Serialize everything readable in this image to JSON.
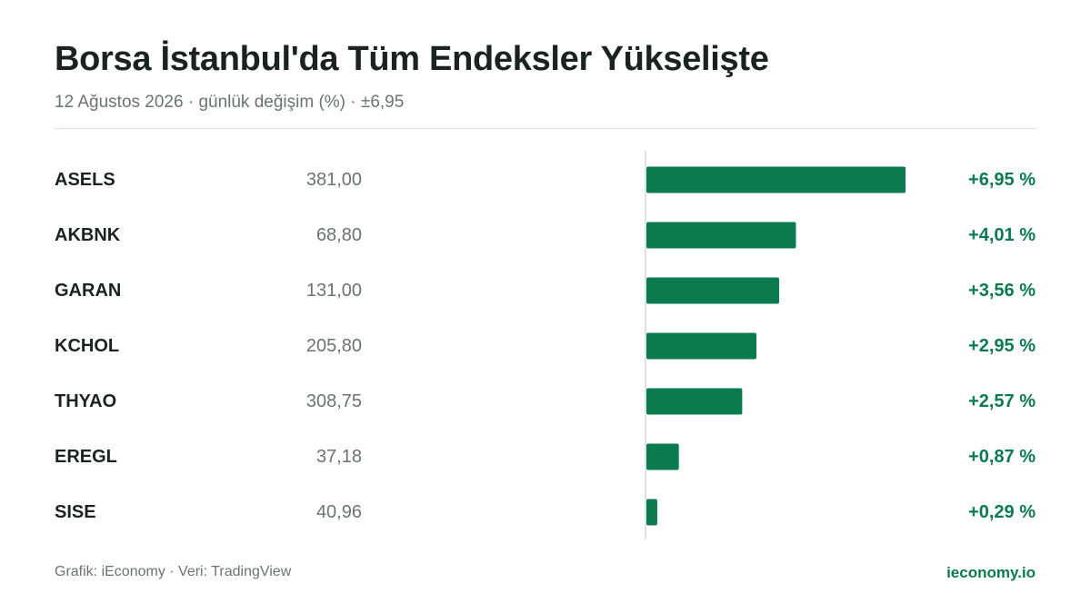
{
  "header": {
    "title": "Borsa İstanbul'da Tüm Endeksler Yükselişte",
    "subtitle": "12 Ağustos 2026 · günlük değişim (%) · ±6,95"
  },
  "footer": {
    "credit": "Grafik: iEconomy · Veri: TradingView",
    "brand": "ieconomy.io"
  },
  "colors": {
    "bar": "#0b7a4f",
    "positive_text": "#0b7a4f",
    "axis": "#d6d9d7"
  },
  "chart_data": {
    "type": "bar",
    "orientation": "horizontal",
    "title": "Borsa İstanbul'da Tüm Endeksler Yükselişte",
    "subtitle": "12 Ağustos 2026 · günlük değişim (%) · ±6,95",
    "xlim": [
      -6.95,
      6.95
    ],
    "grid": false,
    "legend": "none",
    "rows": [
      {
        "ticker": "ASELS",
        "price": "381,00",
        "change": 6.95,
        "change_label": "+6,95 %"
      },
      {
        "ticker": "AKBNK",
        "price": "68,80",
        "change": 4.01,
        "change_label": "+4,01 %"
      },
      {
        "ticker": "GARAN",
        "price": "131,00",
        "change": 3.56,
        "change_label": "+3,56 %"
      },
      {
        "ticker": "KCHOL",
        "price": "205,80",
        "change": 2.95,
        "change_label": "+2,95 %"
      },
      {
        "ticker": "THYAO",
        "price": "308,75",
        "change": 2.57,
        "change_label": "+2,57 %"
      },
      {
        "ticker": "EREGL",
        "price": "37,18",
        "change": 0.87,
        "change_label": "+0,87 %"
      },
      {
        "ticker": "SISE",
        "price": "40,96",
        "change": 0.29,
        "change_label": "+0,29 %"
      }
    ]
  }
}
